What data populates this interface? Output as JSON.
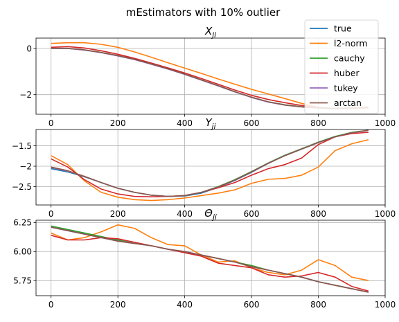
{
  "suptitle": "mEstimators with 10% outlier",
  "colors": {
    "true": "#1f77b4",
    "l2-norm": "#ff7f0e",
    "cauchy": "#2ca02c",
    "huber": "#d62728",
    "tukey": "#9467bd",
    "arctan": "#8c564b"
  },
  "legend": {
    "placement": "top-right",
    "entries": [
      "true",
      "l2-norm",
      "cauchy",
      "huber",
      "tukey",
      "arctan"
    ]
  },
  "chart_data": [
    {
      "type": "line",
      "title": "X_ji",
      "title_base": "X",
      "title_sub": "ji",
      "xlim": [
        -45,
        1000
      ],
      "ylim": [
        -2.85,
        0.45
      ],
      "grid": true,
      "xticks": [
        0,
        200,
        400,
        600,
        800,
        1000
      ],
      "yticks": [
        0,
        -2
      ],
      "x": [
        0,
        50,
        100,
        150,
        200,
        250,
        300,
        350,
        400,
        450,
        500,
        550,
        600,
        650,
        700,
        750,
        800,
        850,
        900,
        950
      ],
      "series": [
        {
          "name": "true",
          "values": [
            0.0,
            0.0,
            -0.07,
            -0.18,
            -0.32,
            -0.48,
            -0.68,
            -0.89,
            -1.12,
            -1.37,
            -1.62,
            -1.88,
            -2.12,
            -2.32,
            -2.45,
            -2.53,
            -2.58,
            -2.6,
            -2.58,
            -2.55
          ]
        },
        {
          "name": "l2-norm",
          "values": [
            0.22,
            0.25,
            0.25,
            0.18,
            0.05,
            -0.15,
            -0.38,
            -0.62,
            -0.85,
            -1.08,
            -1.32,
            -1.55,
            -1.77,
            -1.97,
            -2.17,
            -2.38,
            -2.55,
            -2.6,
            -2.6,
            -2.58
          ]
        },
        {
          "name": "cauchy",
          "values": [
            0.01,
            0.0,
            -0.06,
            -0.17,
            -0.31,
            -0.47,
            -0.67,
            -0.88,
            -1.11,
            -1.36,
            -1.61,
            -1.87,
            -2.11,
            -2.31,
            -2.44,
            -2.52,
            -2.57,
            -2.59,
            -2.57,
            -2.54
          ]
        },
        {
          "name": "huber",
          "values": [
            0.05,
            0.08,
            0.02,
            -0.1,
            -0.25,
            -0.43,
            -0.63,
            -0.84,
            -1.06,
            -1.3,
            -1.55,
            -1.8,
            -2.03,
            -2.21,
            -2.35,
            -2.47,
            -2.56,
            -2.61,
            -2.6,
            -2.56
          ]
        },
        {
          "name": "tukey",
          "values": [
            0.0,
            0.0,
            -0.07,
            -0.18,
            -0.32,
            -0.48,
            -0.68,
            -0.89,
            -1.12,
            -1.37,
            -1.62,
            -1.88,
            -2.12,
            -2.32,
            -2.45,
            -2.53,
            -2.58,
            -2.6,
            -2.58,
            -2.55
          ]
        },
        {
          "name": "arctan",
          "values": [
            0.01,
            0.01,
            -0.06,
            -0.17,
            -0.31,
            -0.47,
            -0.67,
            -0.88,
            -1.11,
            -1.36,
            -1.61,
            -1.87,
            -2.11,
            -2.31,
            -2.45,
            -2.53,
            -2.58,
            -2.6,
            -2.58,
            -2.55
          ]
        }
      ]
    },
    {
      "type": "line",
      "title": "Y_ji",
      "title_base": "Y",
      "title_sub": "ji",
      "xlim": [
        -45,
        1000
      ],
      "ylim": [
        -2.95,
        -1.1
      ],
      "grid": true,
      "xticks": [
        0,
        200,
        400,
        600,
        800,
        1000
      ],
      "yticks": [
        -1.5,
        -2.0,
        -2.5
      ],
      "x": [
        0,
        50,
        100,
        150,
        200,
        250,
        300,
        350,
        400,
        450,
        500,
        550,
        600,
        650,
        700,
        750,
        800,
        850,
        900,
        950
      ],
      "series": [
        {
          "name": "true",
          "values": [
            -2.06,
            -2.14,
            -2.26,
            -2.4,
            -2.54,
            -2.64,
            -2.71,
            -2.74,
            -2.73,
            -2.66,
            -2.52,
            -2.35,
            -2.15,
            -1.93,
            -1.74,
            -1.58,
            -1.42,
            -1.28,
            -1.18,
            -1.12
          ]
        },
        {
          "name": "l2-norm",
          "values": [
            -1.74,
            -1.96,
            -2.36,
            -2.64,
            -2.76,
            -2.82,
            -2.84,
            -2.82,
            -2.78,
            -2.72,
            -2.66,
            -2.58,
            -2.42,
            -2.32,
            -2.3,
            -2.22,
            -2.02,
            -1.62,
            -1.45,
            -1.35
          ]
        },
        {
          "name": "cauchy",
          "values": [
            -2.03,
            -2.12,
            -2.25,
            -2.4,
            -2.54,
            -2.64,
            -2.71,
            -2.74,
            -2.72,
            -2.64,
            -2.5,
            -2.33,
            -2.13,
            -1.92,
            -1.73,
            -1.57,
            -1.41,
            -1.27,
            -1.17,
            -1.12
          ]
        },
        {
          "name": "huber",
          "values": [
            -1.82,
            -2.02,
            -2.33,
            -2.56,
            -2.68,
            -2.74,
            -2.75,
            -2.74,
            -2.72,
            -2.64,
            -2.53,
            -2.4,
            -2.22,
            -2.06,
            -1.96,
            -1.8,
            -1.47,
            -1.28,
            -1.2,
            -1.17
          ]
        },
        {
          "name": "tukey",
          "values": [
            -2.03,
            -2.12,
            -2.25,
            -2.4,
            -2.54,
            -2.64,
            -2.71,
            -2.74,
            -2.72,
            -2.64,
            -2.51,
            -2.34,
            -2.14,
            -1.93,
            -1.74,
            -1.58,
            -1.42,
            -1.28,
            -1.18,
            -1.12
          ]
        },
        {
          "name": "arctan",
          "values": [
            -2.02,
            -2.11,
            -2.25,
            -2.4,
            -2.54,
            -2.64,
            -2.71,
            -2.74,
            -2.72,
            -2.64,
            -2.51,
            -2.34,
            -2.14,
            -1.93,
            -1.74,
            -1.58,
            -1.42,
            -1.28,
            -1.18,
            -1.12
          ]
        }
      ]
    },
    {
      "type": "line",
      "title": "Θ_ji",
      "title_base": "Θ",
      "title_sub": "ji",
      "xlim": [
        -45,
        1000
      ],
      "ylim": [
        5.62,
        6.27
      ],
      "grid": true,
      "xticks": [
        0,
        200,
        400,
        600,
        800,
        1000
      ],
      "yticks": [
        6.25,
        6.0,
        5.75
      ],
      "ytick_labels": [
        "6.25",
        "6.00",
        "5.75"
      ],
      "x": [
        0,
        50,
        100,
        150,
        200,
        250,
        300,
        350,
        400,
        450,
        500,
        550,
        600,
        650,
        700,
        750,
        800,
        850,
        900,
        950
      ],
      "series": [
        {
          "name": "true",
          "values": [
            6.21,
            6.18,
            6.15,
            6.12,
            6.09,
            6.07,
            6.05,
            6.02,
            6.0,
            5.97,
            5.94,
            5.91,
            5.87,
            5.84,
            5.81,
            5.78,
            5.74,
            5.71,
            5.68,
            5.65
          ]
        },
        {
          "name": "l2-norm",
          "values": [
            6.16,
            6.1,
            6.12,
            6.17,
            6.23,
            6.2,
            6.12,
            6.06,
            6.05,
            5.97,
            5.91,
            5.92,
            5.86,
            5.82,
            5.8,
            5.84,
            5.93,
            5.88,
            5.78,
            5.75
          ]
        },
        {
          "name": "cauchy",
          "values": [
            6.22,
            6.19,
            6.16,
            6.13,
            6.1,
            6.07,
            6.05,
            6.02,
            6.0,
            5.97,
            5.94,
            5.91,
            5.88,
            5.84,
            5.81,
            5.78,
            5.74,
            5.71,
            5.68,
            5.65
          ]
        },
        {
          "name": "huber",
          "values": [
            6.14,
            6.1,
            6.1,
            6.12,
            6.11,
            6.08,
            6.05,
            6.02,
            5.99,
            5.96,
            5.9,
            5.88,
            5.86,
            5.8,
            5.78,
            5.79,
            5.82,
            5.78,
            5.7,
            5.66
          ]
        },
        {
          "name": "tukey",
          "values": [
            6.21,
            6.18,
            6.15,
            6.12,
            6.09,
            6.07,
            6.05,
            6.02,
            6.0,
            5.97,
            5.94,
            5.91,
            5.87,
            5.84,
            5.81,
            5.78,
            5.74,
            5.71,
            5.68,
            5.65
          ]
        },
        {
          "name": "arctan",
          "values": [
            6.21,
            6.18,
            6.15,
            6.12,
            6.09,
            6.07,
            6.05,
            6.02,
            6.0,
            5.97,
            5.94,
            5.91,
            5.87,
            5.84,
            5.81,
            5.78,
            5.74,
            5.71,
            5.68,
            5.65
          ]
        }
      ]
    }
  ]
}
